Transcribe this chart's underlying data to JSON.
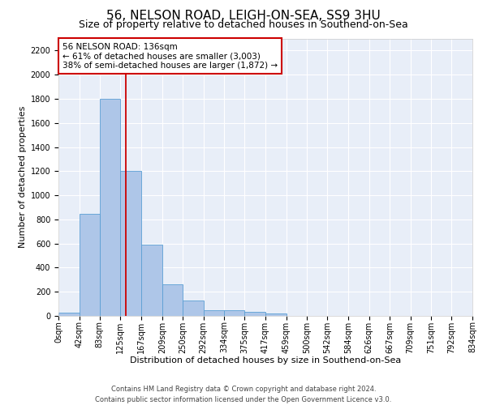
{
  "title": "56, NELSON ROAD, LEIGH-ON-SEA, SS9 3HU",
  "subtitle": "Size of property relative to detached houses in Southend-on-Sea",
  "xlabel": "Distribution of detached houses by size in Southend-on-Sea",
  "ylabel": "Number of detached properties",
  "bar_values": [
    25,
    845,
    1800,
    1200,
    590,
    260,
    125,
    50,
    45,
    32,
    18,
    0,
    0,
    0,
    0,
    0,
    0,
    0,
    0,
    0
  ],
  "bin_edges": [
    0,
    42,
    83,
    125,
    167,
    209,
    250,
    292,
    334,
    375,
    417,
    459,
    500,
    542,
    584,
    626,
    667,
    709,
    751,
    792,
    834
  ],
  "tick_labels": [
    "0sqm",
    "42sqm",
    "83sqm",
    "125sqm",
    "167sqm",
    "209sqm",
    "250sqm",
    "292sqm",
    "334sqm",
    "375sqm",
    "417sqm",
    "459sqm",
    "500sqm",
    "542sqm",
    "584sqm",
    "626sqm",
    "667sqm",
    "709sqm",
    "751sqm",
    "792sqm",
    "834sqm"
  ],
  "bar_color": "#aec6e8",
  "bar_edge_color": "#5a9fd4",
  "vline_x": 136,
  "vline_color": "#cc0000",
  "annotation_line1": "56 NELSON ROAD: 136sqm",
  "annotation_line2": "← 61% of detached houses are smaller (3,003)",
  "annotation_line3": "38% of semi-detached houses are larger (1,872) →",
  "annotation_box_color": "#cc0000",
  "ylim": [
    0,
    2300
  ],
  "yticks": [
    0,
    200,
    400,
    600,
    800,
    1000,
    1200,
    1400,
    1600,
    1800,
    2000,
    2200
  ],
  "bg_color": "#e8eef8",
  "footer_line1": "Contains HM Land Registry data © Crown copyright and database right 2024.",
  "footer_line2": "Contains public sector information licensed under the Open Government Licence v3.0.",
  "title_fontsize": 11,
  "subtitle_fontsize": 9,
  "axis_label_fontsize": 8,
  "tick_fontsize": 7,
  "annotation_fontsize": 7.5,
  "footer_fontsize": 6
}
